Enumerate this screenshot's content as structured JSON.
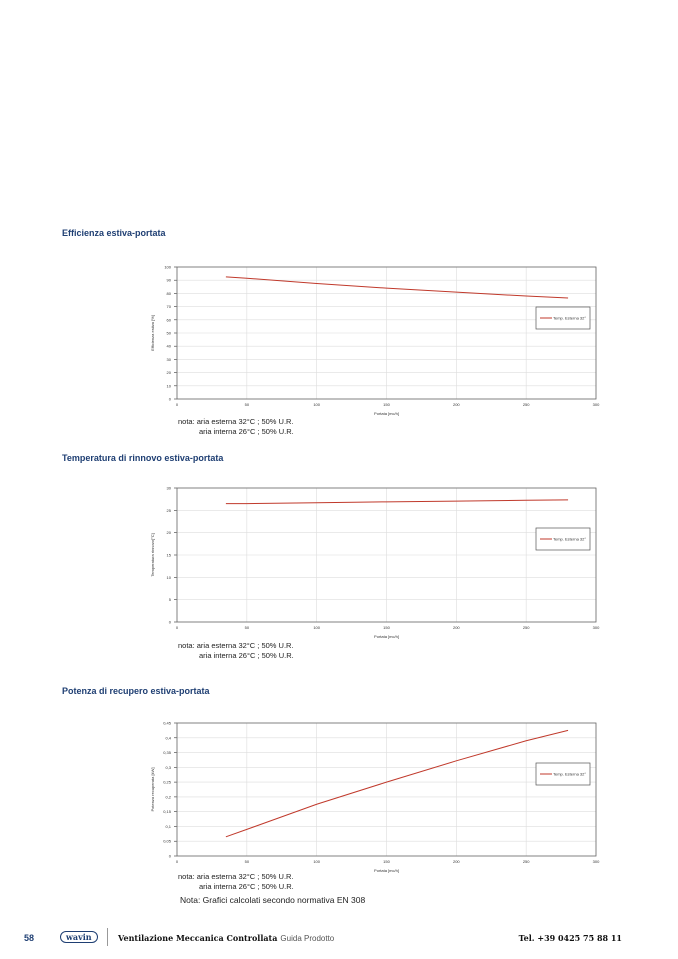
{
  "chart_data": [
    {
      "type": "line",
      "section_title": "Efficienza estiva-portata",
      "xlabel": "Portata [mc/h]",
      "ylabel": "Efficienza estiva [%]",
      "xlim": [
        0,
        300
      ],
      "ylim": [
        0,
        100
      ],
      "x_ticks": [
        "0",
        "50",
        "100",
        "150",
        "200",
        "250",
        "300"
      ],
      "y_ticks": [
        "0",
        "10",
        "20",
        "30",
        "40",
        "50",
        "60",
        "70",
        "80",
        "90",
        "100"
      ],
      "grid": true,
      "legend": "right",
      "series": [
        {
          "name": "Temp. Esterna 32°",
          "color": "#c0392b",
          "x": [
            35,
            50,
            100,
            150,
            200,
            250,
            280
          ],
          "y": [
            92.5,
            91.5,
            87.5,
            84,
            81,
            78,
            76.5
          ]
        }
      ]
    },
    {
      "type": "line",
      "section_title": "Temperatura di rinnovo estiva-portata",
      "xlabel": "Portata [mc/h]",
      "ylabel": "Temperatura rinnovo[°C]",
      "xlim": [
        0,
        300
      ],
      "ylim": [
        0,
        30
      ],
      "x_ticks": [
        "0",
        "50",
        "100",
        "150",
        "200",
        "250",
        "300"
      ],
      "y_ticks": [
        "0",
        "5",
        "10",
        "15",
        "20",
        "25",
        "30"
      ],
      "grid": true,
      "legend": "right",
      "series": [
        {
          "name": "Temp. Esterna 32°",
          "color": "#c0392b",
          "x": [
            35,
            50,
            100,
            150,
            200,
            250,
            280
          ],
          "y": [
            26.5,
            26.5,
            26.7,
            26.9,
            27.05,
            27.25,
            27.35
          ]
        }
      ]
    },
    {
      "type": "line",
      "section_title": "Potenza di recupero estiva-portata",
      "xlabel": "Portata [mc/h]",
      "ylabel": "Potenza recuperata [kW]",
      "xlim": [
        0,
        300
      ],
      "ylim": [
        0,
        0.45
      ],
      "x_ticks": [
        "0",
        "50",
        "100",
        "150",
        "200",
        "250",
        "300"
      ],
      "y_ticks": [
        "0",
        "0,05",
        "0,1",
        "0,15",
        "0,2",
        "0,25",
        "0,3",
        "0,35",
        "0,4",
        "0,45"
      ],
      "grid": true,
      "legend": "right",
      "series": [
        {
          "name": "Temp. Esterna 32°",
          "color": "#c0392b",
          "x": [
            35,
            50,
            100,
            150,
            200,
            250,
            280
          ],
          "y": [
            0.065,
            0.09,
            0.175,
            0.25,
            0.322,
            0.39,
            0.425
          ]
        }
      ]
    }
  ],
  "notes": {
    "line1": "nota: aria esterna 32°C ; 50% U.R.",
    "line2": "aria interna 26°C ; 50% U.R."
  },
  "final_note": "Nota: Grafici calcolati secondo normativa EN 308",
  "footer": {
    "page": "58",
    "logo": "wavin",
    "title": "Ventilazione Meccanica Controllata",
    "subtitle": "Guida Prodotto",
    "tel": "Tel. +39 0425 75 88 11"
  }
}
